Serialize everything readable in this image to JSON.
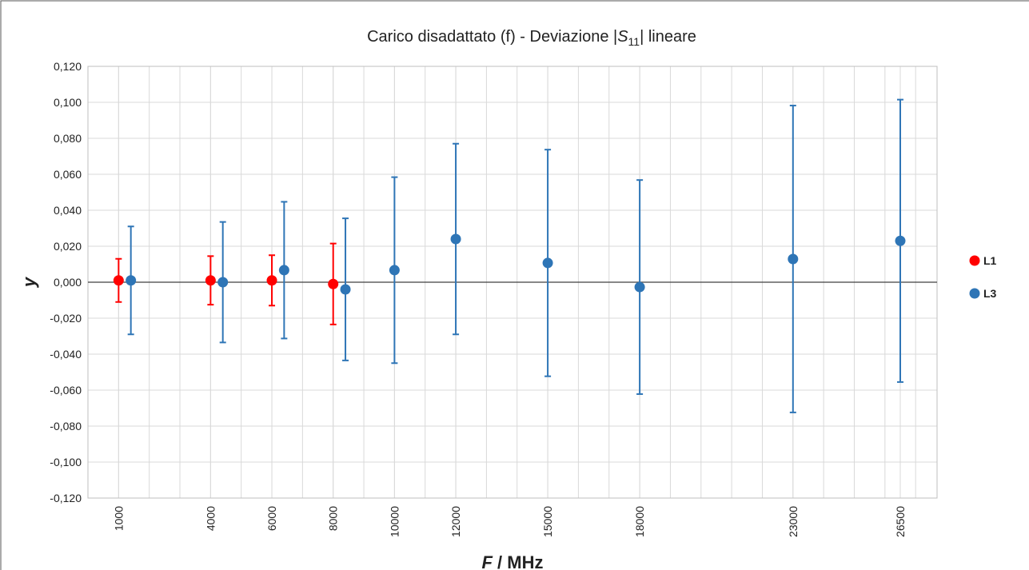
{
  "chart_data": {
    "type": "scatter",
    "title": [
      "Carico disadattato (f) - Deviazione |",
      "S",
      "11",
      "| lineare"
    ],
    "x_label": [
      "F",
      " / MHz"
    ],
    "y_label": "y",
    "xlim": [
      0,
      27700
    ],
    "xticks": [
      1000,
      4000,
      6000,
      8000,
      10000,
      12000,
      15000,
      18000,
      23000,
      26500
    ],
    "x_minor_grid_step": 1000,
    "ylim": [
      -0.12,
      0.12
    ],
    "yticks": [
      {
        "value": -0.12,
        "label": "-0,120"
      },
      {
        "value": -0.1,
        "label": "-0,100"
      },
      {
        "value": -0.08,
        "label": "-0,080"
      },
      {
        "value": -0.06,
        "label": "-0,060"
      },
      {
        "value": -0.04,
        "label": "-0,040"
      },
      {
        "value": -0.02,
        "label": "-0,020"
      },
      {
        "value": 0,
        "label": "0,000"
      },
      {
        "value": 0.02,
        "label": "0,020"
      },
      {
        "value": 0.04,
        "label": "0,040"
      },
      {
        "value": 0.06,
        "label": "0,060"
      },
      {
        "value": 0.08,
        "label": "0,080"
      },
      {
        "value": 0.1,
        "label": "0,100"
      },
      {
        "value": 0.12,
        "label": "0,120"
      }
    ],
    "grid": true,
    "legend": "right",
    "series": [
      {
        "name": "L1",
        "color": "#ff0000",
        "x": [
          1000,
          4000,
          6000,
          8000
        ],
        "values": [
          0.001,
          0.001,
          0.001,
          -0.001
        ],
        "errors": [
          0.012,
          0.0135,
          0.014,
          0.0225
        ]
      },
      {
        "name": "L3",
        "color": "#2e75b6",
        "x": [
          1400,
          4400,
          6400,
          8400,
          10000,
          12000,
          15000,
          18000,
          23000,
          26500
        ],
        "values": [
          0.001,
          0.0,
          0.0067,
          -0.004,
          0.0067,
          0.024,
          0.0107,
          -0.0027,
          0.0129,
          0.023
        ],
        "errors": [
          0.03,
          0.0335,
          0.038,
          0.0395,
          0.0517,
          0.053,
          0.063,
          0.0595,
          0.0853,
          0.0785
        ]
      }
    ]
  }
}
